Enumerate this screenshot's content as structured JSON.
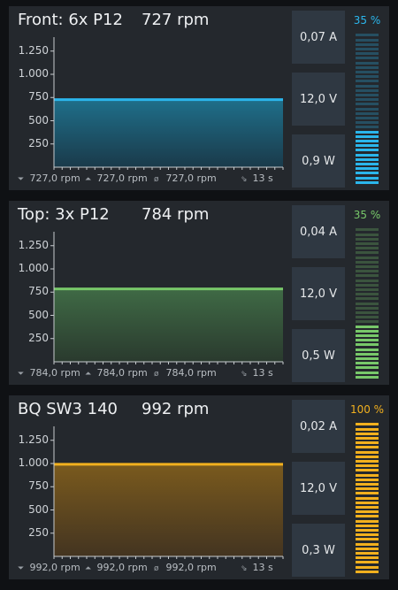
{
  "panels": [
    {
      "title": "Front: 6x P12",
      "rpm_text": "727 rpm",
      "color": "#2bb6ec",
      "fill_top": "#1f6f8a",
      "fill_bottom": "#1a3a4a",
      "current": "0,07 A",
      "voltage": "12,0 V",
      "power": "0,9 W",
      "percent_text": "35 %",
      "percent": 35,
      "stats": {
        "min": "727,0 rpm",
        "max": "727,0 rpm",
        "avg": "727,0 rpm",
        "window": "13 s"
      },
      "chart_data": {
        "type": "area",
        "ylim": [
          0,
          1400
        ],
        "y_ticks": [
          "250",
          "500",
          "750",
          "1.000",
          "1.250"
        ],
        "values": [
          727,
          727
        ]
      }
    },
    {
      "title": "Top: 3x P12",
      "rpm_text": "784 rpm",
      "color": "#78c86a",
      "fill_top": "#3f6a45",
      "fill_bottom": "#2a3a2e",
      "current": "0,04 A",
      "voltage": "12,0 V",
      "power": "0,5 W",
      "percent_text": "35 %",
      "percent": 35,
      "stats": {
        "min": "784,0 rpm",
        "max": "784,0 rpm",
        "avg": "784,0 rpm",
        "window": "13 s"
      },
      "chart_data": {
        "type": "area",
        "ylim": [
          0,
          1400
        ],
        "y_ticks": [
          "250",
          "500",
          "750",
          "1.000",
          "1.250"
        ],
        "values": [
          784,
          784
        ]
      }
    },
    {
      "title": "BQ SW3 140",
      "rpm_text": "992 rpm",
      "color": "#f2b01e",
      "fill_top": "#7a5a1e",
      "fill_bottom": "#433420",
      "current": "0,02 A",
      "voltage": "12,0 V",
      "power": "0,3 W",
      "percent_text": "100 %",
      "percent": 100,
      "stats": {
        "min": "992,0 rpm",
        "max": "992,0 rpm",
        "avg": "992,0 rpm",
        "window": "13 s"
      },
      "chart_data": {
        "type": "area",
        "ylim": [
          0,
          1400
        ],
        "y_ticks": [
          "250",
          "500",
          "750",
          "1.000",
          "1.250"
        ],
        "values": [
          992,
          992
        ]
      }
    }
  ],
  "icons": {
    "min": "min-icon",
    "max": "max-icon",
    "avg": "avg-icon",
    "window": "window-icon"
  }
}
